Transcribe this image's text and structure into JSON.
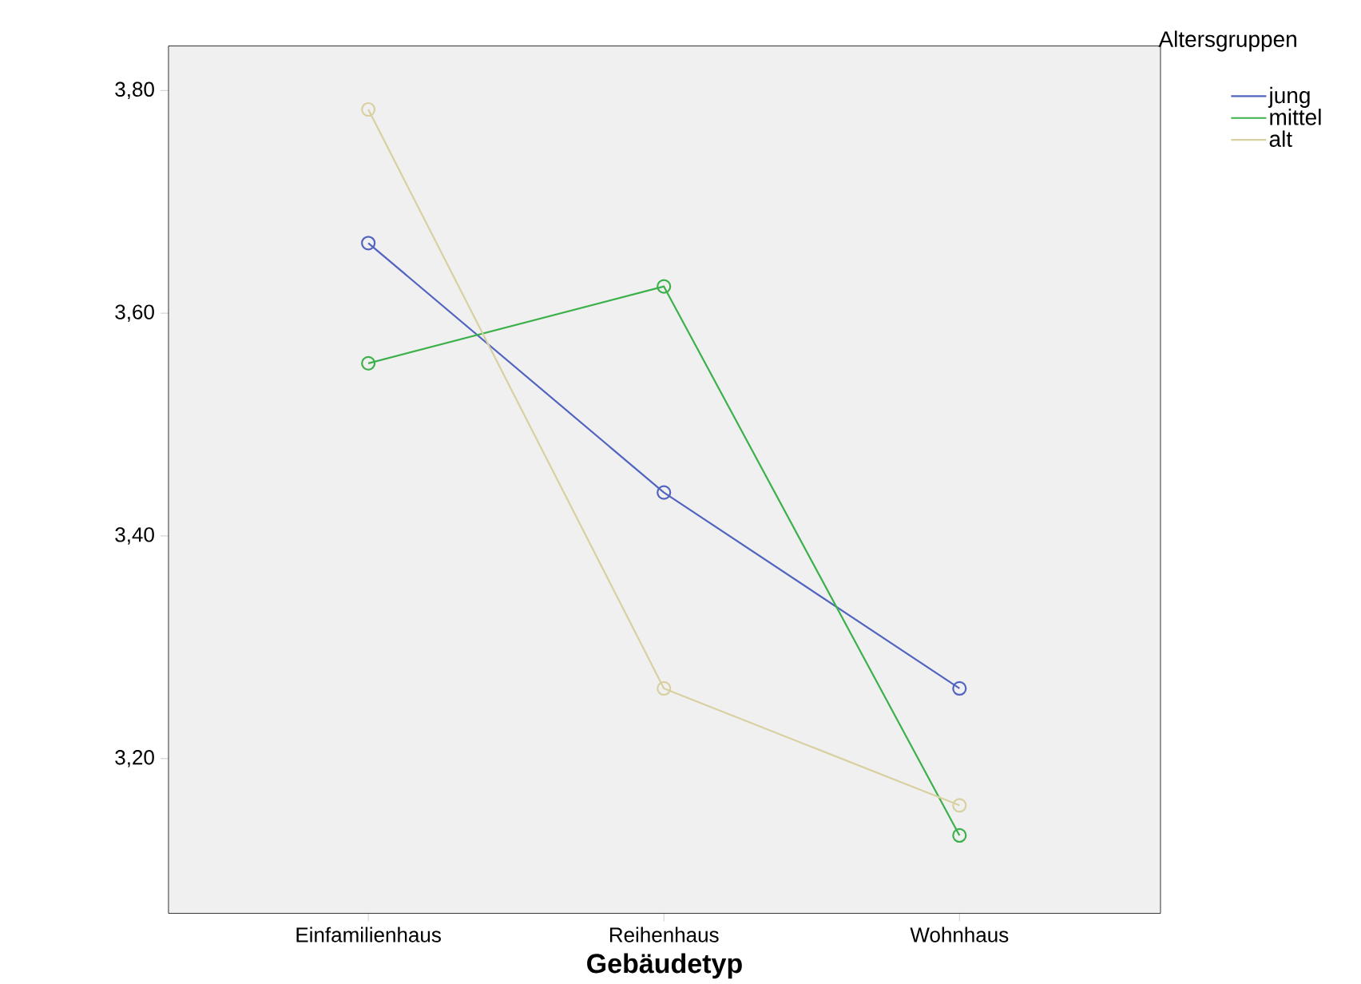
{
  "chart_data": {
    "type": "line",
    "xlabel": "Gebäudetyp",
    "legend_title": "Altersgruppen",
    "categories": [
      "Einfamilienhaus",
      "Reihenhaus",
      "Wohnhaus"
    ],
    "series": [
      {
        "name": "jung",
        "color": "#5064c0",
        "values": [
          3.663,
          3.439,
          3.263
        ]
      },
      {
        "name": "mittel",
        "color": "#3cb04a",
        "values": [
          3.555,
          3.624,
          3.131
        ]
      },
      {
        "name": "alt",
        "color": "#d8d0a0",
        "values": [
          3.783,
          3.263,
          3.158
        ]
      }
    ],
    "ylim": [
      3.061,
      3.84
    ],
    "yticks": [
      {
        "value": 3.2,
        "label": "3,20"
      },
      {
        "value": 3.4,
        "label": "3,40"
      },
      {
        "value": 3.6,
        "label": "3,60"
      },
      {
        "value": 3.8,
        "label": "3,80"
      }
    ],
    "grid": false,
    "legend": "top right",
    "marker": "circle",
    "line_style": "solid"
  }
}
